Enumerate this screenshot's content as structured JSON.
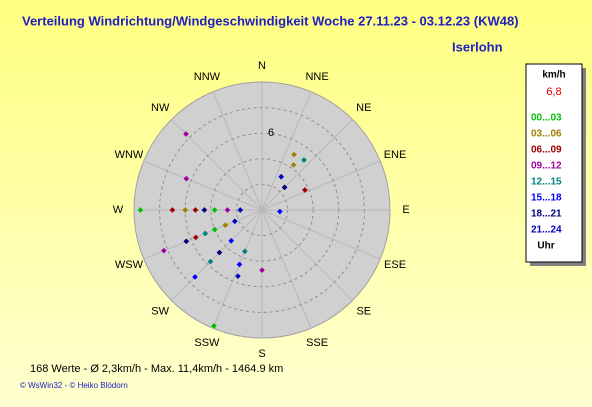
{
  "chart_data": {
    "type": "polar-scatter",
    "title": "Verteilung Windrichtung/Windgeschwindigkeit  Woche 27.11.23 - 03.12.23 (KW48)",
    "location": "Iserlohn",
    "directions": [
      "N",
      "NNE",
      "NE",
      "ENE",
      "E",
      "ESE",
      "SE",
      "SSE",
      "S",
      "SSW",
      "SW",
      "WSW",
      "W",
      "WNW",
      "NW",
      "NNW"
    ],
    "rlim": [
      0,
      10
    ],
    "rings": [
      2,
      4,
      6,
      8
    ],
    "rticks": [
      6
    ],
    "legend_unit": "km/h",
    "legend_current": "6,8",
    "legend_footer": "Uhr",
    "series": [
      {
        "name": "00...03",
        "color": "#00c000",
        "theta": [
          270,
          202.5,
          247.5,
          270
        ],
        "values": [
          9.5,
          9.8,
          4,
          3.7
        ]
      },
      {
        "name": "03...06",
        "color": "#a08000",
        "theta": [
          30,
          35,
          270,
          247.5
        ],
        "values": [
          5,
          4.3,
          6,
          3.1
        ]
      },
      {
        "name": "06...09",
        "color": "#a00000",
        "theta": [
          65,
          270,
          247.5,
          270
        ],
        "values": [
          3.7,
          7,
          5.6,
          5.2
        ]
      },
      {
        "name": "09...12",
        "color": "#a000a0",
        "theta": [
          247.5,
          315,
          292.5,
          180,
          270
        ],
        "values": [
          8.3,
          8.4,
          6.4,
          4.7,
          2.7
        ]
      },
      {
        "name": "12...15",
        "color": "#008080",
        "theta": [
          225,
          247.5,
          40,
          202.5
        ],
        "values": [
          5.7,
          4.8,
          5.1,
          3.5
        ]
      },
      {
        "name": "15...18",
        "color": "#0000ff",
        "theta": [
          225,
          202.5,
          95,
          225
        ],
        "values": [
          7.4,
          4.6,
          1.4,
          3.4
        ]
      },
      {
        "name": "18...21",
        "color": "#000080",
        "theta": [
          247.5,
          270,
          45,
          225
        ],
        "values": [
          6.4,
          4.5,
          2.5,
          4.7
        ]
      },
      {
        "name": "21...24",
        "color": "#0000c0",
        "theta": [
          270,
          247.5,
          30,
          200
        ],
        "values": [
          1.7,
          2.3,
          3,
          5.5
        ]
      }
    ],
    "stats": "168 Werte   -   Ø 2,3km/h  -  Max. 11,4km/h   -   1464.9 km",
    "copyright": "© WsWin32  -  © Heiko Blödorn"
  }
}
